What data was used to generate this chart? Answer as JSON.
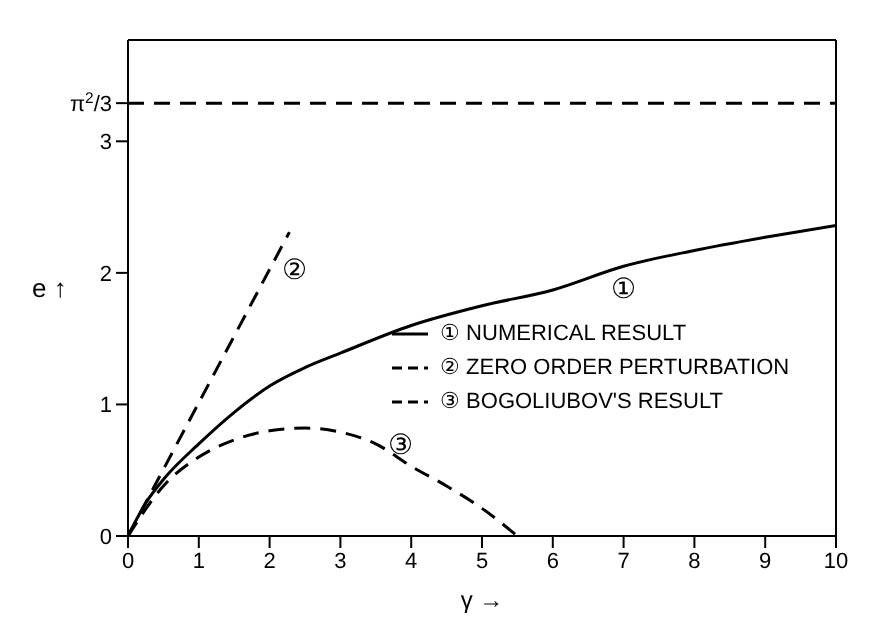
{
  "chart_data": {
    "type": "line",
    "xlabel": "γ →",
    "ylabel": "e ↑",
    "xlim": [
      0,
      10
    ],
    "ylim": [
      0,
      3.77
    ],
    "xticks": [
      0,
      1,
      2,
      3,
      4,
      5,
      6,
      7,
      8,
      9,
      10
    ],
    "yticks": [
      0,
      1,
      2,
      3,
      {
        "value": 3.29,
        "label": "π$^{2}$/3"
      }
    ],
    "grid": false,
    "legend": "right",
    "marker": "none",
    "series": [
      {
        "name": "① NUMERICAL RESULT",
        "color": "#000000",
        "line_style": "solid",
        "x": [
          0,
          0.25,
          0.5,
          1,
          1.5,
          2,
          2.5,
          3,
          4,
          5,
          6,
          7,
          8,
          9,
          10
        ],
        "values": [
          0,
          0.25,
          0.43,
          0.7,
          0.94,
          1.14,
          1.28,
          1.39,
          1.6,
          1.75,
          1.87,
          2.05,
          2.17,
          2.27,
          2.36
        ]
      },
      {
        "name": "② ZERO ORDER PERTURBATION",
        "color": "#000000",
        "line_style": "dashed",
        "x": [
          0,
          2.28
        ],
        "values": [
          0,
          2.31
        ]
      },
      {
        "name": "③ BOGOLIUBOV'S RESULT",
        "color": "#000000",
        "line_style": "dashed",
        "x": [
          0,
          0.5,
          1,
          1.5,
          2,
          2.5,
          3,
          3.5,
          4,
          4.5,
          5,
          5.5
        ],
        "values": [
          0,
          0.38,
          0.6,
          0.73,
          0.8,
          0.82,
          0.79,
          0.7,
          0.53,
          0.38,
          0.21,
          0
        ]
      }
    ],
    "ref_lines": [
      {
        "axis": "y",
        "value": 3.29,
        "line_style": "dashed",
        "color": "#000000"
      }
    ],
    "annotations": [
      {
        "text": "①",
        "x": 7,
        "y": 2.05
      },
      {
        "text": "②",
        "x": 2,
        "y": 2.03
      },
      {
        "text": "③",
        "x": 3.5,
        "y": 0.7
      }
    ]
  }
}
